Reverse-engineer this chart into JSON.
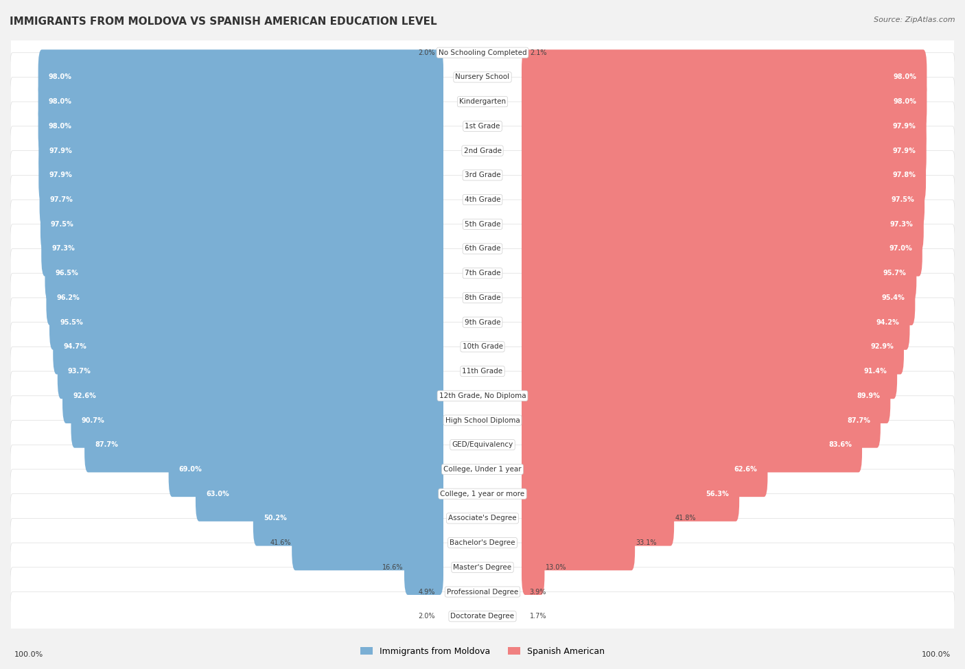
{
  "title": "IMMIGRANTS FROM MOLDOVA VS SPANISH AMERICAN EDUCATION LEVEL",
  "source": "Source: ZipAtlas.com",
  "categories": [
    "No Schooling Completed",
    "Nursery School",
    "Kindergarten",
    "1st Grade",
    "2nd Grade",
    "3rd Grade",
    "4th Grade",
    "5th Grade",
    "6th Grade",
    "7th Grade",
    "8th Grade",
    "9th Grade",
    "10th Grade",
    "11th Grade",
    "12th Grade, No Diploma",
    "High School Diploma",
    "GED/Equivalency",
    "College, Under 1 year",
    "College, 1 year or more",
    "Associate's Degree",
    "Bachelor's Degree",
    "Master's Degree",
    "Professional Degree",
    "Doctorate Degree"
  ],
  "moldova_values": [
    2.0,
    98.0,
    98.0,
    98.0,
    97.9,
    97.9,
    97.7,
    97.5,
    97.3,
    96.5,
    96.2,
    95.5,
    94.7,
    93.7,
    92.6,
    90.7,
    87.7,
    69.0,
    63.0,
    50.2,
    41.6,
    16.6,
    4.9,
    2.0
  ],
  "spanish_values": [
    2.1,
    98.0,
    98.0,
    97.9,
    97.9,
    97.8,
    97.5,
    97.3,
    97.0,
    95.7,
    95.4,
    94.2,
    92.9,
    91.4,
    89.9,
    87.7,
    83.6,
    62.6,
    56.3,
    41.8,
    33.1,
    13.0,
    3.9,
    1.7
  ],
  "moldova_color": "#7BAFD4",
  "spanish_color": "#F08080",
  "bg_color": "#F2F2F2",
  "legend_moldova": "Immigrants from Moldova",
  "legend_spanish": "Spanish American",
  "left_label": "100.0%",
  "right_label": "100.0%"
}
